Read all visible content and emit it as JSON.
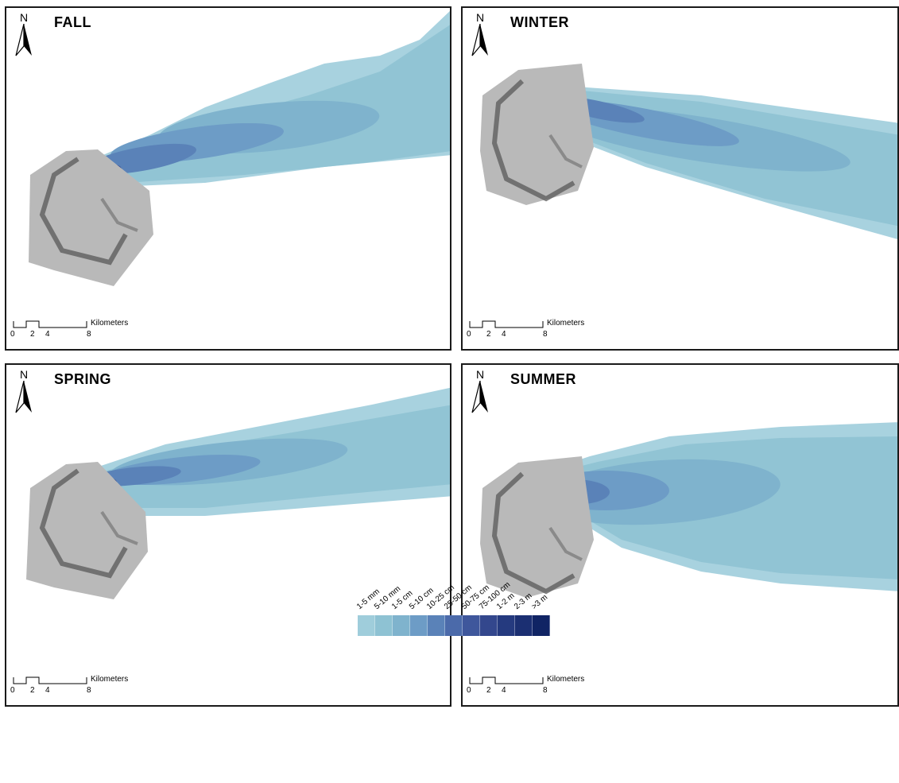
{
  "panels": [
    {
      "season": "FALL"
    },
    {
      "season": "WINTER"
    },
    {
      "season": "SPRING"
    },
    {
      "season": "SUMMER"
    }
  ],
  "north_label": "N",
  "scale_bar": {
    "unit": "Kilometers",
    "ticks": [
      "0",
      "2",
      "4",
      "8"
    ]
  },
  "legend": {
    "classes": [
      {
        "label": "1-5 mm",
        "color": "#9fcddb"
      },
      {
        "label": "5-10 mm",
        "color": "#8ec2d3"
      },
      {
        "label": "1-5 cm",
        "color": "#7fb3cd"
      },
      {
        "label": "5-10 cm",
        "color": "#6d9cc6"
      },
      {
        "label": "10-25 cm",
        "color": "#5a82b8"
      },
      {
        "label": "25-50 cm",
        "color": "#4b6aaa"
      },
      {
        "label": "50-75 cm",
        "color": "#3f579c"
      },
      {
        "label": "75-100 cm",
        "color": "#33478d"
      },
      {
        "label": "1-2 m",
        "color": "#253a7f"
      },
      {
        "label": "2-3 m",
        "color": "#1b2f72"
      },
      {
        "label": ">3 m",
        "color": "#102464"
      }
    ]
  }
}
